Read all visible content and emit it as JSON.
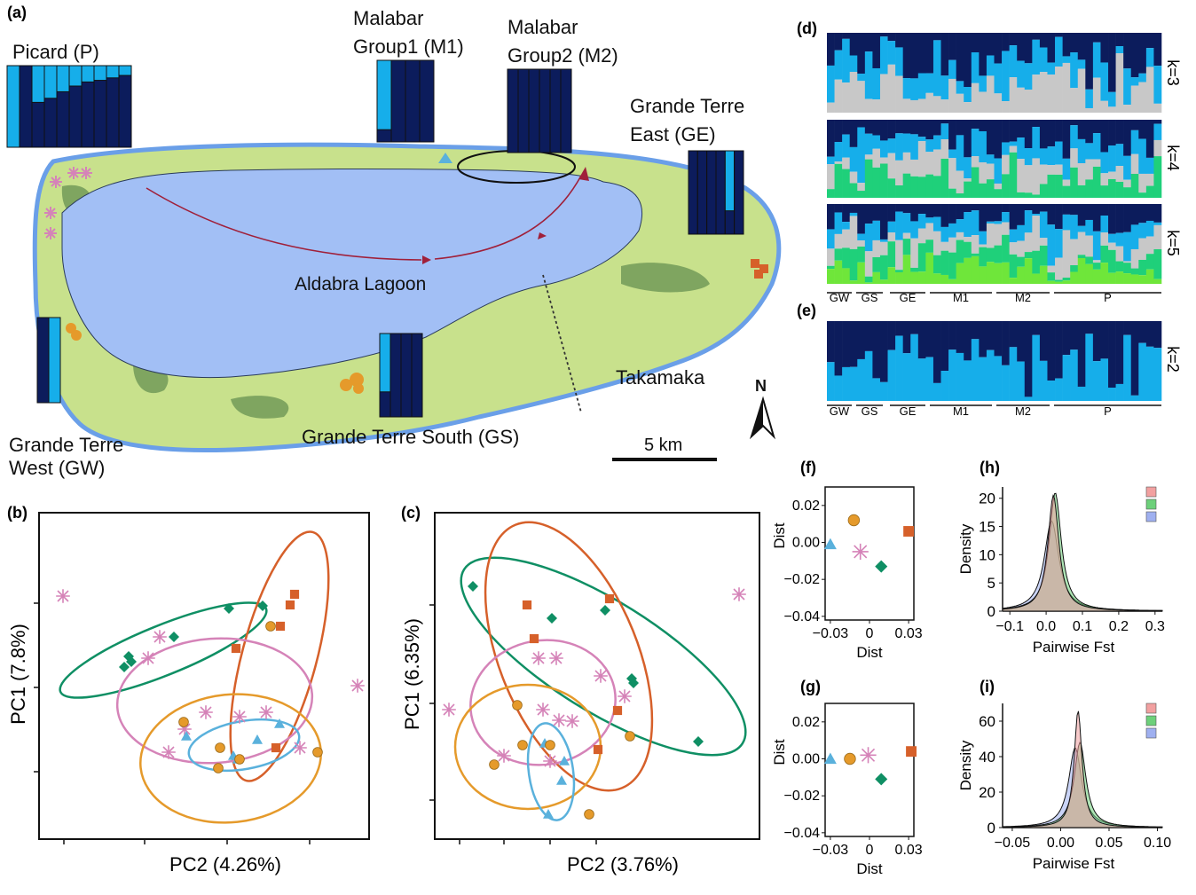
{
  "panels": {
    "a": "(a)",
    "b": "(b)",
    "c": "(c)",
    "d": "(d)",
    "e": "(e)",
    "f": "(f)",
    "g": "(g)",
    "h": "(h)",
    "i": "(i)"
  },
  "map": {
    "picard": "Picard (P)",
    "m1_line1": "Malabar",
    "m1_line2": "Group1 (M1)",
    "m2_line1": "Malabar",
    "m2_line2": "Group2 (M2)",
    "ge_line1": "Grande Terre",
    "ge_line2": "East (GE)",
    "gw_line1": "Grande Terre",
    "gw_line2": "West (GW)",
    "gs": "Grande Terre South (GS)",
    "lagoon": "Aldabra Lagoon",
    "takamaka": "Takamaka",
    "scale": "5 km",
    "north": "N"
  },
  "colors": {
    "dark": "#0c1c5c",
    "light": "#16aeea",
    "grey": "#c8c8c8",
    "green": "#1fd07a",
    "lime": "#6fe63a",
    "GW": "#e59a2b",
    "GS": "#e59a2b",
    "GE": "#d6602a",
    "M1": "#5ab1dc",
    "M2": "#0f8f64",
    "P": "#d583b8"
  },
  "admixture": {
    "groups": [
      "GW",
      "GS",
      "GE",
      "M1",
      "M2",
      "P"
    ],
    "k_labels": [
      "k=3",
      "k=4",
      "k=5"
    ],
    "k2_label": "k=2"
  },
  "pca_b": {
    "xlabel": "PC2 (4.26%)",
    "ylabel": "PC1 (7.8%)"
  },
  "pca_c": {
    "xlabel": "PC2 (3.76%)",
    "ylabel": "PC1 (6.35%)"
  },
  "chart_data": [
    {
      "panel": "f",
      "type": "scatter",
      "xlabel": "Dist",
      "ylabel": "Dist",
      "xticks": [
        "−0.03",
        "0",
        "0.03"
      ],
      "yticks": [
        "0.02",
        "0.00",
        "−0.02",
        "−0.04"
      ],
      "xlim": [
        -0.034,
        0.034
      ],
      "ylim": [
        -0.042,
        0.03
      ],
      "points": [
        {
          "group": "M1",
          "x": -0.03,
          "y": -0.001
        },
        {
          "group": "GS",
          "x": -0.012,
          "y": 0.012
        },
        {
          "group": "P",
          "x": -0.007,
          "y": -0.005
        },
        {
          "group": "M2",
          "x": 0.009,
          "y": -0.013
        },
        {
          "group": "GE",
          "x": 0.03,
          "y": 0.006
        }
      ]
    },
    {
      "panel": "g",
      "type": "scatter",
      "xlabel": "Dist",
      "ylabel": "Dist",
      "xticks": [
        "−0.03",
        "0",
        "0.03"
      ],
      "yticks": [
        "0.02",
        "0.00",
        "−0.02",
        "−0.04"
      ],
      "xlim": [
        -0.034,
        0.034
      ],
      "ylim": [
        -0.042,
        0.03
      ],
      "points": [
        {
          "group": "M1",
          "x": -0.03,
          "y": 0.0
        },
        {
          "group": "GS",
          "x": -0.015,
          "y": 0.0
        },
        {
          "group": "P",
          "x": -0.001,
          "y": 0.002
        },
        {
          "group": "M2",
          "x": 0.009,
          "y": -0.011
        },
        {
          "group": "GE",
          "x": 0.032,
          "y": 0.004
        }
      ]
    },
    {
      "panel": "h",
      "type": "area",
      "xlabel": "Pairwise Fst",
      "ylabel": "Density",
      "xticks": [
        "−0.1",
        "0.0",
        "0.1",
        "0.2",
        "0.3"
      ],
      "yticks": [
        "0",
        "5",
        "10",
        "15",
        "20"
      ],
      "xlim": [
        -0.12,
        0.32
      ],
      "ylim": [
        0,
        22
      ],
      "series": [
        {
          "color": "#f2a0a0",
          "peak_x": 0.02,
          "peak_y": 20.5,
          "width": 0.045
        },
        {
          "color": "#6dd07a",
          "peak_x": 0.025,
          "peak_y": 21,
          "width": 0.05
        },
        {
          "color": "#9fb0f0",
          "peak_x": 0.015,
          "peak_y": 16,
          "width": 0.06
        }
      ]
    },
    {
      "panel": "i",
      "type": "area",
      "xlabel": "Pairwise Fst",
      "ylabel": "Density",
      "xticks": [
        "−0.05",
        "0.00",
        "0.05",
        "0.10"
      ],
      "yticks": [
        "0",
        "20",
        "40",
        "60"
      ],
      "xlim": [
        -0.06,
        0.105
      ],
      "ylim": [
        0,
        70
      ],
      "series": [
        {
          "color": "#f2a0a0",
          "peak_x": 0.018,
          "peak_y": 66,
          "width": 0.012
        },
        {
          "color": "#6dd07a",
          "peak_x": 0.02,
          "peak_y": 48,
          "width": 0.018
        },
        {
          "color": "#9fb0f0",
          "peak_x": 0.015,
          "peak_y": 45,
          "width": 0.02
        }
      ]
    }
  ]
}
